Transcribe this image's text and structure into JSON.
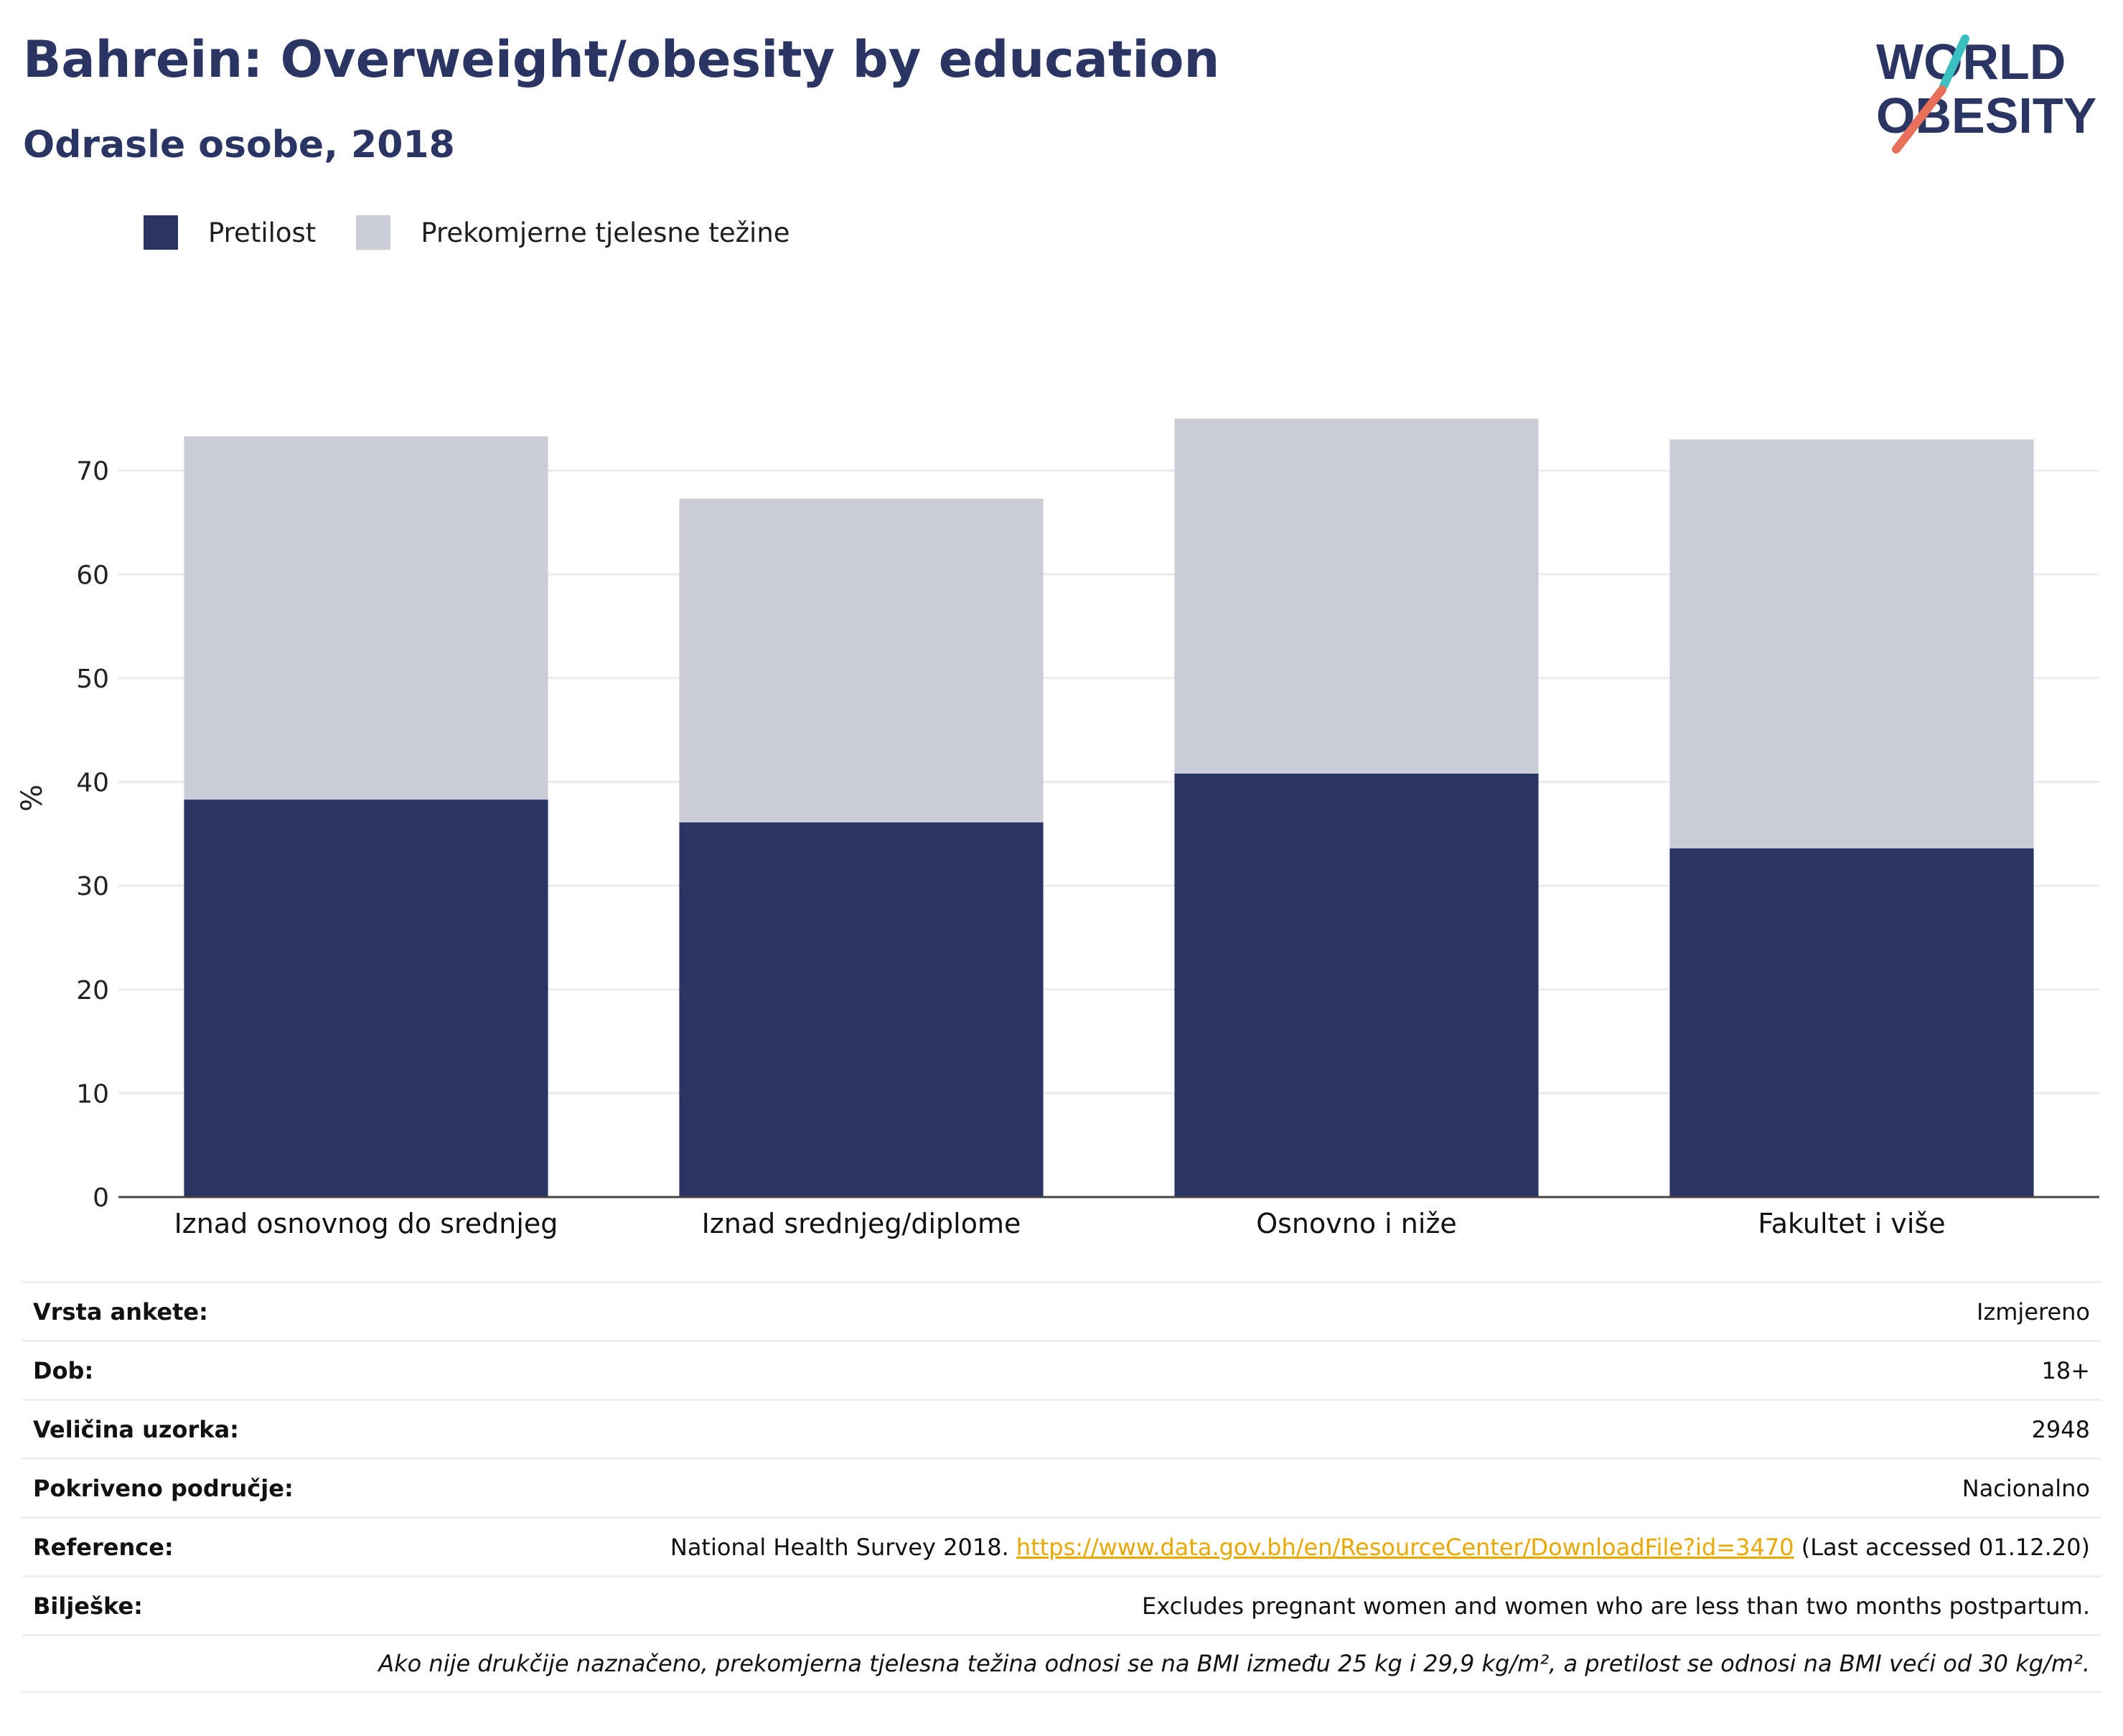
{
  "header": {
    "title": "Bahrein: Overweight/obesity by education",
    "subtitle": "Odrasle osobe, 2018"
  },
  "logo": {
    "line1": "WORLD",
    "line2": "OBESITY",
    "icon": "world-obesity-logo"
  },
  "colors": {
    "obesity": "#2a3563",
    "overweight": "#cbccd8",
    "title": "#2a3563",
    "link": "#e8a800",
    "logo_teal": "#3bbfbf",
    "logo_coral": "#e8705a"
  },
  "legend": [
    {
      "label": "Pretilost",
      "color": "#2a3563"
    },
    {
      "label": "Prekomjerne tjelesne težine",
      "color": "#cbccd8"
    }
  ],
  "chart_data": {
    "type": "bar",
    "stacked": true,
    "categories": [
      "Iznad osnovnog do srednjeg",
      "Iznad srednjeg/diplome",
      "Osnovno i niže",
      "Fakultet i više"
    ],
    "series": [
      {
        "name": "Pretilost",
        "values": [
          38.3,
          36.1,
          40.8,
          33.6
        ]
      },
      {
        "name": "Prekomjerne tjelesne težine",
        "values": [
          35.0,
          31.2,
          34.2,
          39.4
        ]
      }
    ],
    "ylabel": "%",
    "ylim": [
      0,
      78
    ],
    "yticks": [
      0,
      10,
      20,
      30,
      40,
      50,
      60,
      70
    ],
    "grid": true,
    "legend_position": "top-left"
  },
  "info": {
    "survey_type": {
      "label": "Vrsta ankete:",
      "value": "Izmjereno"
    },
    "age": {
      "label": "Dob:",
      "value": "18+"
    },
    "sample_size": {
      "label": "Veličina uzorka:",
      "value": "2948"
    },
    "area": {
      "label": "Pokriveno područje:",
      "value": "Nacionalno"
    },
    "reference": {
      "label": "Reference:",
      "prefix": "National Health Survey 2018.",
      "link": "https://www.data.gov.bh/en/ResourceCenter/DownloadFile?id=3470",
      "suffix": "(Last accessed 01.12.20)"
    },
    "notes": {
      "label": "Bilješke:",
      "value": "Excludes pregnant women and women who are less than two months postpartum."
    },
    "footnote": "Ako nije drukčije naznačeno, prekomjerna tjelesna težina odnosi se na BMI između 25 kg i 29,9 kg/m², a pretilost se odnosi na BMI veći od 30 kg/m²."
  }
}
